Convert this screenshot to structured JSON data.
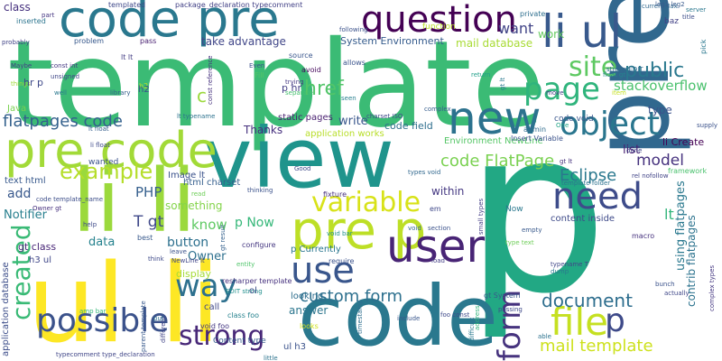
{
  "words": [
    {
      "text": "template",
      "color": "#3bbb75"
    },
    {
      "text": "p",
      "color": "#22a884"
    },
    {
      "text": "code",
      "color": "#2a788e"
    },
    {
      "text": "view",
      "color": "#1f948c"
    },
    {
      "text": "li li",
      "color": "#9bd93c"
    },
    {
      "text": "ul li",
      "color": "#fde725"
    },
    {
      "text": "pre",
      "color": "#31688e"
    },
    {
      "text": "code pre",
      "color": "#2a788e"
    },
    {
      "text": "pre code",
      "color": "#a2da37"
    },
    {
      "text": "pre p",
      "color": "#bddf26"
    },
    {
      "text": "question",
      "color": "#440154"
    },
    {
      "text": "li ul",
      "color": "#38598c"
    },
    {
      "text": "new",
      "color": "#2c728e"
    },
    {
      "text": "page",
      "color": "#2fb47c"
    },
    {
      "text": "site",
      "color": "#5ec962"
    },
    {
      "text": "object",
      "color": "#2a768e"
    },
    {
      "text": "user",
      "color": "#482475"
    },
    {
      "text": "need",
      "color": "#3e4c8a"
    },
    {
      "text": "file",
      "color": "#c5e021"
    },
    {
      "text": "use",
      "color": "#39568c"
    },
    {
      "text": "way",
      "color": "#2d708e"
    },
    {
      "text": "possible",
      "color": "#3b528b"
    },
    {
      "text": "form",
      "color": "#46337e"
    },
    {
      "text": "strong",
      "color": "#482878"
    },
    {
      "text": "created",
      "color": "#3aba76"
    },
    {
      "text": "variable",
      "color": "#d8e219"
    },
    {
      "text": "example",
      "color": "#b5de2b"
    },
    {
      "text": "flatpages code",
      "color": "#34618d"
    },
    {
      "text": "document",
      "color": "#2e6e8e"
    },
    {
      "text": "mail template",
      "color": "#cde11d"
    },
    {
      "text": "custom form",
      "color": "#2d708e"
    },
    {
      "text": "code FlatPage",
      "color": "#7ad151"
    },
    {
      "text": "p",
      "color": "#3e4a89"
    },
    {
      "text": "public",
      "color": "#2a788e"
    },
    {
      "text": "stackoverflow",
      "color": "#4ac16d"
    },
    {
      "text": "model",
      "color": "#46327e"
    },
    {
      "text": "Eclipse",
      "color": "#2a788e"
    },
    {
      "text": "href",
      "color": "#52c569"
    },
    {
      "text": "want",
      "color": "#414487"
    },
    {
      "text": "work",
      "color": "#65cb5e"
    },
    {
      "text": "System Environment",
      "color": "#365c8d"
    },
    {
      "text": "take advantage",
      "color": "#404688"
    },
    {
      "text": "mail database",
      "color": "#a8db34"
    },
    {
      "text": "PHP",
      "color": "#355f8d"
    },
    {
      "text": "something",
      "color": "#84d44b"
    },
    {
      "text": "know",
      "color": "#5ec962"
    },
    {
      "text": "button",
      "color": "#2d708e"
    },
    {
      "text": "data",
      "color": "#26828e"
    },
    {
      "text": "T gt",
      "color": "#3f4889"
    },
    {
      "text": "p Now",
      "color": "#35b779"
    },
    {
      "text": "add",
      "color": "#38588c"
    },
    {
      "text": "Notifier",
      "color": "#277f8e"
    },
    {
      "text": "display",
      "color": "#a5db36"
    },
    {
      "text": "Owner",
      "color": "#2d708e"
    },
    {
      "text": "answer",
      "color": "#2b758e"
    },
    {
      "text": "within",
      "color": "#453882"
    },
    {
      "text": "list",
      "color": "#482173"
    },
    {
      "text": "lt",
      "color": "#31b57b"
    },
    {
      "text": "using flatpages",
      "color": "#2a788e"
    },
    {
      "text": "contrib flatpages",
      "color": "#2c738e"
    },
    {
      "text": "content inside",
      "color": "#3e4a89"
    },
    {
      "text": "type",
      "color": "#3b528b"
    },
    {
      "text": "li Create",
      "color": "#440154"
    },
    {
      "text": "Thanks",
      "color": "#46307e"
    },
    {
      "text": "write",
      "color": "#39568c"
    },
    {
      "text": "static pages",
      "color": "#481f70"
    },
    {
      "text": "code field",
      "color": "#2e6e8e"
    },
    {
      "text": "Environment NewLine",
      "color": "#56c667"
    },
    {
      "text": "application works",
      "color": "#b8de29"
    },
    {
      "text": "Image lt",
      "color": "#3b528b"
    },
    {
      "text": "html charset",
      "color": "#355f8d"
    },
    {
      "text": "text html",
      "color": "#38598c"
    },
    {
      "text": "gt class",
      "color": "#482677"
    },
    {
      "text": "h3 ul",
      "color": "#3f4788"
    },
    {
      "text": "application database",
      "color": "#3d4e8a"
    },
    {
      "text": "ul h3",
      "color": "#3b528b"
    },
    {
      "text": "class",
      "color": "#46317e"
    },
    {
      "text": "templated",
      "color": "#3f4889"
    },
    {
      "text": "part",
      "color": "#453581"
    },
    {
      "text": "package_declaration typecomment",
      "color": "#424186"
    },
    {
      "text": "server",
      "color": "#2a778e"
    },
    {
      "text": "title",
      "color": "#3d4d8a"
    },
    {
      "text": "inserted",
      "color": "#2b748e"
    },
    {
      "text": "problem",
      "color": "#38598c"
    },
    {
      "text": "pass",
      "color": "#482071"
    },
    {
      "text": "function",
      "color": "#bade28"
    },
    {
      "text": "private",
      "color": "#2e6f8e"
    },
    {
      "text": "baz",
      "color": "#424186"
    },
    {
      "text": "pick",
      "color": "#2a778e"
    },
    {
      "text": "lt lt",
      "color": "#433d84"
    },
    {
      "text": "h2",
      "color": "#bddf26"
    },
    {
      "text": "library",
      "color": "#35608d"
    },
    {
      "text": "avoid",
      "color": "#460a5d"
    },
    {
      "text": "allows",
      "color": "#3a548c"
    },
    {
      "text": "source",
      "color": "#39568c"
    },
    {
      "text": "trying",
      "color": "#453882"
    },
    {
      "text": "seen",
      "color": "#277f8e"
    },
    {
      "text": "separate",
      "color": "#46c06f"
    },
    {
      "text": "Fill",
      "color": "#54c568"
    },
    {
      "text": "Even",
      "color": "#3b518b"
    },
    {
      "text": "return",
      "color": "#1f9f88"
    },
    {
      "text": "gt lt",
      "color": "#2a788e"
    },
    {
      "text": "float gt",
      "color": "#25858e"
    },
    {
      "text": "strong EDIT",
      "color": "#2f6c8e"
    },
    {
      "text": "item",
      "color": "#c5e021"
    },
    {
      "text": "move",
      "color": "#433e85"
    },
    {
      "text": "complex",
      "color": "#365d8d"
    },
    {
      "text": "charset ISO",
      "color": "#3e4989"
    },
    {
      "text": "lt typename",
      "color": "#2c718e"
    },
    {
      "text": "lt float",
      "color": "#355f8d"
    },
    {
      "text": "code void",
      "color": "#39568c"
    },
    {
      "text": "admin",
      "color": "#2f6c8e"
    },
    {
      "text": "One",
      "color": "#20a386"
    },
    {
      "text": "Insert Variable",
      "color": "#3b528b"
    },
    {
      "text": "rel nofollow",
      "color": "#414487"
    },
    {
      "text": "template folder",
      "color": "#2c728e"
    },
    {
      "text": "framework",
      "color": "#4ac16d"
    },
    {
      "text": "macro",
      "color": "#46327e"
    },
    {
      "text": "Good",
      "color": "#3e4989"
    },
    {
      "text": "types void",
      "color": "#31688e"
    },
    {
      "text": "fixture",
      "color": "#46307e"
    },
    {
      "text": "thinking",
      "color": "#3b528b"
    },
    {
      "text": "em",
      "color": "#3f4889"
    },
    {
      "text": "load",
      "color": "#433e85"
    },
    {
      "text": "require",
      "color": "#3b528b"
    },
    {
      "text": "p Currently",
      "color": "#2a768e"
    },
    {
      "text": "configure",
      "color": "#453781"
    },
    {
      "text": "void bar",
      "color": "#20928c"
    },
    {
      "text": "entity",
      "color": "#4fc46a"
    },
    {
      "text": "EDIT strong",
      "color": "#218f8d"
    },
    {
      "text": "resharper template",
      "color": "#46317e"
    },
    {
      "text": "looking",
      "color": "#2e6e8e"
    },
    {
      "text": "ol",
      "color": "#3d4e8a"
    },
    {
      "text": "call",
      "color": "#3f4788"
    },
    {
      "text": "class foo",
      "color": "#26828e"
    },
    {
      "text": "void foo",
      "color": "#453882"
    },
    {
      "text": "Content type",
      "color": "#365c8d"
    },
    {
      "text": "typecomment type_declaration",
      "color": "#404688"
    },
    {
      "text": "little",
      "color": "#2c738e"
    },
    {
      "text": "timestamp",
      "color": "#2e6e8e"
    },
    {
      "text": "different",
      "color": "#414487"
    },
    {
      "text": "parent template",
      "color": "#38598c"
    },
    {
      "text": "put",
      "color": "#2d708e"
    },
    {
      "text": "amp bar",
      "color": "#35b779"
    },
    {
      "text": "wanted",
      "color": "#3b528b"
    },
    {
      "text": "read",
      "color": "#6ece58"
    },
    {
      "text": "help",
      "color": "#3e4a89"
    },
    {
      "text": "best",
      "color": "#38598c"
    },
    {
      "text": "leave",
      "color": "#3b528b"
    },
    {
      "text": "NewLine lt",
      "color": "#404688"
    },
    {
      "text": "Owner gt",
      "color": "#46307e"
    },
    {
      "text": "code template_name",
      "color": "#3d4e8a"
    },
    {
      "text": "looks",
      "color": "#d0e11c"
    },
    {
      "text": "gt result",
      "color": "#34618d"
    },
    {
      "text": "think",
      "color": "#3e4989"
    },
    {
      "text": "const reference",
      "color": "#46327e"
    },
    {
      "text": "const int",
      "color": "#453882"
    },
    {
      "text": "unsigned",
      "color": "#3f4788"
    },
    {
      "text": "well",
      "color": "#2a788e"
    },
    {
      "text": "things",
      "color": "#a0da39"
    },
    {
      "text": "Maybe",
      "color": "#433e85"
    },
    {
      "text": "probably",
      "color": "#414487"
    },
    {
      "text": "following",
      "color": "#3b528b"
    },
    {
      "text": "currentMax",
      "color": "#31688e"
    },
    {
      "text": "leg1 leg2",
      "color": "#38598c"
    },
    {
      "text": "include",
      "color": "#39568c"
    },
    {
      "text": "address",
      "color": "#31b57b"
    },
    {
      "text": "passing",
      "color": "#3e4989"
    },
    {
      "text": "empty",
      "color": "#38598c"
    },
    {
      "text": "type text",
      "color": "#6ece58"
    },
    {
      "text": "typename T",
      "color": "#404688"
    },
    {
      "text": "dump",
      "color": "#2a788e"
    },
    {
      "text": "bunch",
      "color": "#3b528b"
    },
    {
      "text": "actually",
      "color": "#3f4788"
    },
    {
      "text": "complex types",
      "color": "#453882"
    },
    {
      "text": "able",
      "color": "#2c728e"
    },
    {
      "text": "foo const",
      "color": "#3e4989"
    },
    {
      "text": "section",
      "color": "#3b528b"
    },
    {
      "text": "small types",
      "color": "#433e85"
    },
    {
      "text": "difficult",
      "color": "#2a788e"
    },
    {
      "text": "done",
      "color": "#414487"
    },
    {
      "text": "supply",
      "color": "#3b528b"
    },
    {
      "text": "Now",
      "color": "#2a788e"
    },
    {
      "text": "gt System",
      "color": "#38598c"
    },
    {
      "text": "void",
      "color": "#31688e"
    },
    {
      "text": "gt lt",
      "color": "#46327e"
    },
    {
      "text": "li float",
      "color": "#3e4989"
    },
    {
      "text": "c",
      "color": "#9bd93c"
    },
    {
      "text": "h2",
      "color": "#3b528b"
    },
    {
      "text": "hr p",
      "color": "#3e4989"
    },
    {
      "text": "p hr",
      "color": "#433e85"
    },
    {
      "text": "Java",
      "color": "#7ad151"
    }
  ]
}
